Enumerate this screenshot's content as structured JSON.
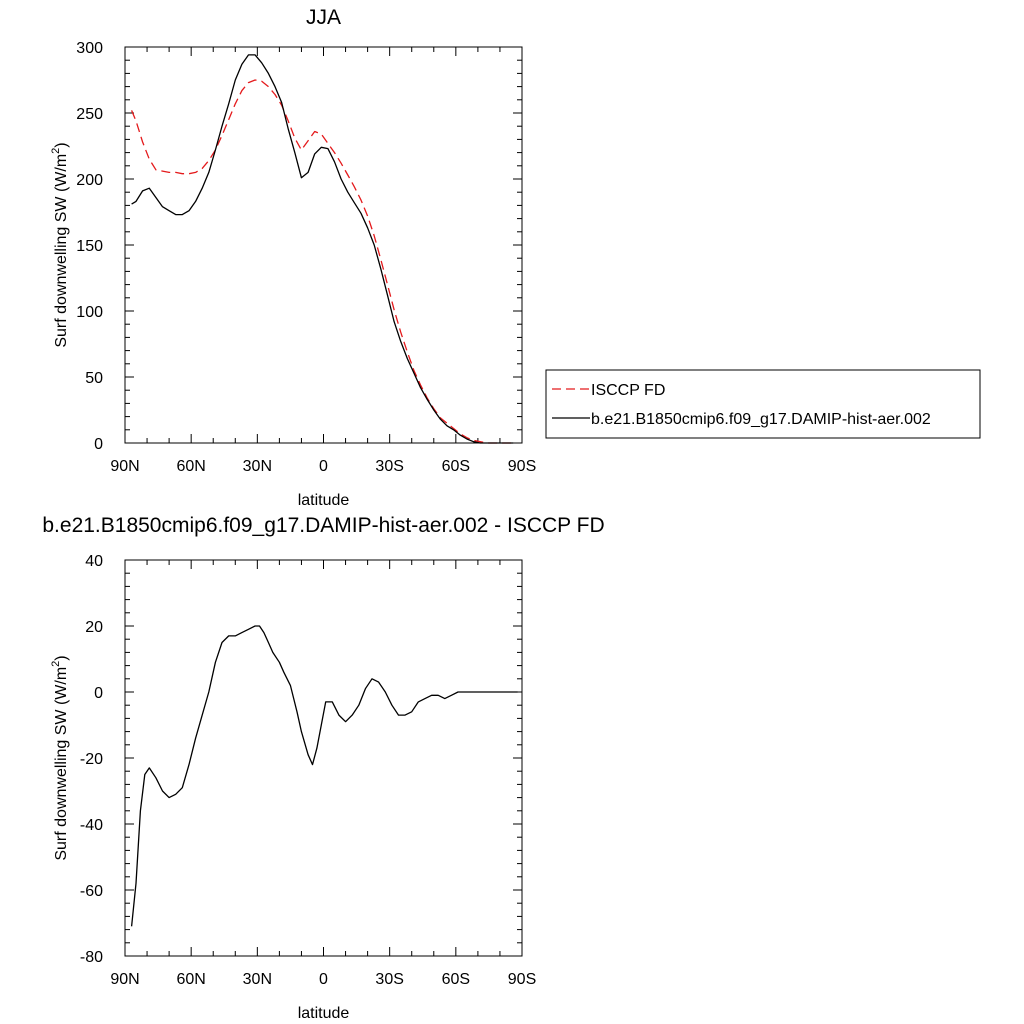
{
  "colors": {
    "obs": "#e41a1c",
    "model": "#000000",
    "frame": "#000000"
  },
  "chart_data": [
    {
      "type": "line",
      "title": "JJA",
      "xlabel": "latitude",
      "ylabel_main": "Surf downwelling SW (W/m",
      "ylabel_sup": "2",
      "ylabel_close": ")",
      "xlim": [
        90,
        -90
      ],
      "ylim": [
        0,
        300
      ],
      "xticks": [
        90,
        60,
        30,
        0,
        -30,
        -60,
        -90
      ],
      "xtick_labels": [
        "90N",
        "60N",
        "30N",
        "0",
        "30S",
        "60S",
        "90S"
      ],
      "yticks": [
        0,
        50,
        100,
        150,
        200,
        250,
        300
      ],
      "ytick_labels": [
        "0",
        "50",
        "100",
        "150",
        "200",
        "250",
        "300"
      ],
      "legend_position": "right",
      "x": [
        87,
        85,
        82,
        79,
        76,
        73,
        70,
        67,
        64,
        61,
        58,
        55,
        52,
        49,
        46,
        43,
        40,
        37,
        34,
        31,
        28,
        25,
        22,
        19,
        16,
        13,
        10,
        7,
        4,
        1,
        -2,
        -5,
        -8,
        -11,
        -14,
        -17,
        -20,
        -23,
        -26,
        -29,
        -32,
        -35,
        -38,
        -41,
        -44,
        -47,
        -50,
        -53,
        -56,
        -59,
        -62,
        -65,
        -68,
        -71,
        -74,
        -77,
        -80,
        -83,
        -86
      ],
      "series": [
        {
          "name": "ISCCP FD",
          "style": "dashed",
          "values": [
            252,
            244,
            228,
            215,
            207,
            206,
            205,
            205,
            204,
            204,
            205,
            208,
            214,
            222,
            233,
            245,
            257,
            267,
            273,
            275,
            274,
            270,
            264,
            256,
            244,
            231,
            222,
            229,
            236,
            234,
            227,
            220,
            212,
            203,
            194,
            184,
            172,
            157,
            139,
            120,
            101,
            84,
            69,
            55,
            44,
            34,
            26,
            19,
            15,
            11,
            7,
            4,
            2,
            1,
            0,
            0,
            0,
            0,
            0
          ]
        },
        {
          "name": "b.e21.B1850cmip6.f09_g17.DAMIP-hist-aer.002",
          "style": "solid",
          "values": [
            181,
            183,
            191,
            193,
            186,
            179,
            176,
            173,
            173,
            176,
            183,
            193,
            205,
            222,
            240,
            257,
            275,
            287,
            294,
            294,
            288,
            280,
            270,
            258,
            238,
            220,
            201,
            205,
            219,
            224,
            223,
            213,
            200,
            190,
            182,
            174,
            163,
            150,
            132,
            112,
            92,
            77,
            64,
            53,
            42,
            33,
            25,
            18,
            13,
            10,
            6,
            3,
            1,
            0,
            0,
            0,
            0,
            0,
            0
          ]
        }
      ]
    },
    {
      "type": "line",
      "title": "b.e21.B1850cmip6.f09_g17.DAMIP-hist-aer.002 - ISCCP FD",
      "xlabel": "latitude",
      "ylabel_main": "Surf downwelling SW (W/m",
      "ylabel_sup": "2",
      "ylabel_close": ")",
      "xlim": [
        90,
        -90
      ],
      "ylim": [
        -80,
        40
      ],
      "xticks": [
        90,
        60,
        30,
        0,
        -30,
        -60,
        -90
      ],
      "xtick_labels": [
        "90N",
        "60N",
        "30N",
        "0",
        "30S",
        "60S",
        "90S"
      ],
      "yticks": [
        -80,
        -60,
        -40,
        -20,
        0,
        20,
        40
      ],
      "ytick_labels": [
        "-80",
        "-60",
        "-40",
        "-20",
        "0",
        "20",
        "40"
      ],
      "x": [
        87,
        85,
        83,
        81,
        79,
        76,
        73,
        70,
        67,
        64,
        61,
        58,
        55,
        52,
        49,
        46,
        43,
        40,
        37,
        34,
        31,
        29,
        27,
        25,
        23,
        20,
        18,
        15,
        12,
        10,
        7,
        5,
        3,
        1,
        -1,
        -4,
        -7,
        -10,
        -13,
        -16,
        -19,
        -22,
        -25,
        -28,
        -31,
        -34,
        -37,
        -40,
        -43,
        -46,
        -49,
        -52,
        -55,
        -58,
        -61,
        -64,
        -67,
        -70,
        -73,
        -76,
        -79,
        -82,
        -85,
        -88
      ],
      "series": [
        {
          "name": "",
          "style": "solid",
          "values": [
            -71,
            -58,
            -36,
            -25,
            -23,
            -26,
            -30,
            -32,
            -31,
            -29,
            -22,
            -14,
            -7,
            0,
            9,
            15,
            17,
            17,
            18,
            19,
            20,
            20,
            18,
            15,
            12,
            9,
            6,
            2,
            -6,
            -12,
            -19,
            -22,
            -17,
            -10,
            -3,
            -3,
            -7,
            -9,
            -7,
            -4,
            1,
            4,
            3,
            0,
            -4,
            -7,
            -7,
            -6,
            -3,
            -2,
            -1,
            -1,
            -2,
            -1,
            0,
            0,
            0,
            0,
            0,
            0,
            0,
            0,
            0,
            0
          ]
        }
      ]
    }
  ]
}
